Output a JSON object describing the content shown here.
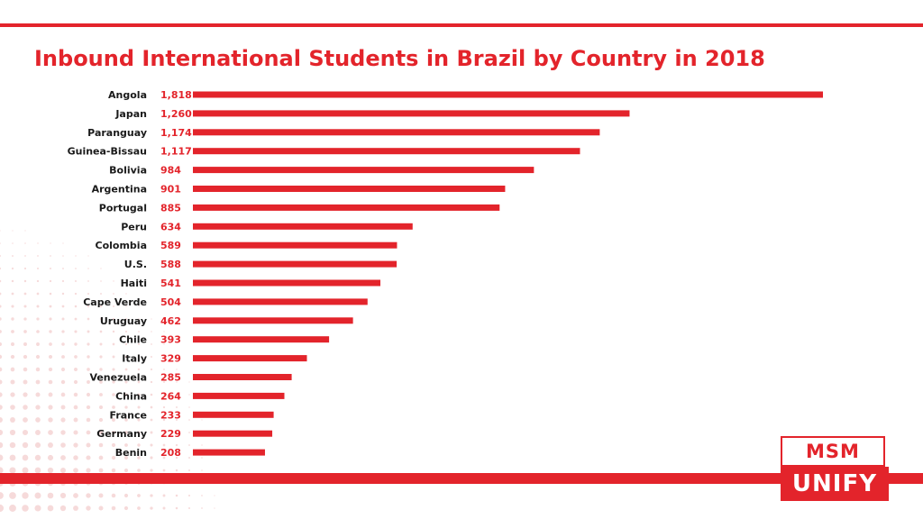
{
  "colors": {
    "accent": "#e3242b",
    "bar": "#e3242b",
    "label_text": "#1a1a1a",
    "value_text": "#e3242b",
    "dot_pattern": "#f6dada",
    "background": "#ffffff"
  },
  "chart_data": {
    "type": "bar",
    "orientation": "horizontal",
    "title": "Inbound International Students in Brazil by Country in 2018",
    "categories": [
      "Angola",
      "Japan",
      "Paranguay",
      "Guinea-Bissau",
      "Bolivia",
      "Argentina",
      "Portugal",
      "Peru",
      "Colombia",
      "U.S.",
      "Haiti",
      "Cape Verde",
      "Uruguay",
      "Chile",
      "Italy",
      "Venezuela",
      "China",
      "France",
      "Germany",
      "Benin"
    ],
    "values": [
      1818,
      1260,
      1174,
      1117,
      984,
      901,
      885,
      634,
      589,
      588,
      541,
      504,
      462,
      393,
      329,
      285,
      264,
      233,
      229,
      208
    ],
    "value_labels": [
      "1,818",
      "1,260",
      "1,174",
      "1,117",
      "984",
      "901",
      "885",
      "634",
      "589",
      "588",
      "541",
      "504",
      "462",
      "393",
      "329",
      "285",
      "264",
      "233",
      "229",
      "208"
    ],
    "xlabel": "",
    "ylabel": "",
    "xlim": [
      0,
      1818
    ],
    "grid": false,
    "legend": "none"
  },
  "logo": {
    "line1": "MSM",
    "line2": "UNIFY"
  }
}
